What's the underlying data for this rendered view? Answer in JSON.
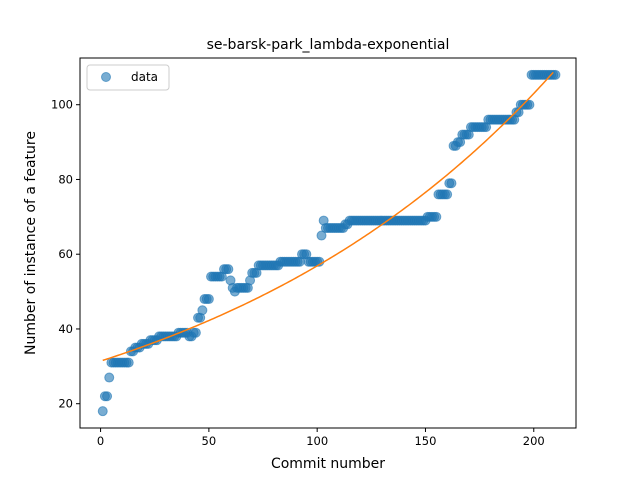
{
  "chart_data": {
    "type": "scatter",
    "title": "se-barsk-park_lambda-exponential",
    "xlabel": "Commit number",
    "ylabel": "Number of instance of a feature",
    "xlim": [
      -9.5,
      219.5
    ],
    "ylim": [
      13.5,
      112.5
    ],
    "x_ticks": [
      0,
      50,
      100,
      150,
      200
    ],
    "y_ticks": [
      20,
      40,
      60,
      80,
      100
    ],
    "legend": {
      "position": "top-left",
      "entries": [
        "data"
      ]
    },
    "grid": false,
    "colors": {
      "data": "#1f77b4",
      "fit": "#ff7f0e"
    },
    "series": [
      {
        "name": "data",
        "kind": "scatter",
        "segments": [
          [
            1,
            1,
            18
          ],
          [
            2,
            2,
            22
          ],
          [
            3,
            3,
            22
          ],
          [
            4,
            4,
            27
          ],
          [
            5,
            13,
            31
          ],
          [
            14,
            15,
            34
          ],
          [
            16,
            18,
            35
          ],
          [
            19,
            22,
            36
          ],
          [
            23,
            26,
            37
          ],
          [
            27,
            28,
            38
          ],
          [
            29,
            35,
            38
          ],
          [
            36,
            40,
            39
          ],
          [
            41,
            42,
            38
          ],
          [
            43,
            44,
            39
          ],
          [
            45,
            46,
            43
          ],
          [
            47,
            47,
            45
          ],
          [
            48,
            50,
            48
          ],
          [
            51,
            56,
            54
          ],
          [
            57,
            59,
            56
          ],
          [
            60,
            60,
            53
          ],
          [
            61,
            61,
            51
          ],
          [
            62,
            62,
            50
          ],
          [
            63,
            68,
            51
          ],
          [
            69,
            69,
            53
          ],
          [
            70,
            72,
            55
          ],
          [
            73,
            78,
            57
          ],
          [
            79,
            82,
            57
          ],
          [
            83,
            92,
            58
          ],
          [
            93,
            95,
            60
          ],
          [
            96,
            101,
            58
          ],
          [
            102,
            102,
            65
          ],
          [
            103,
            103,
            69
          ],
          [
            104,
            112,
            67
          ],
          [
            113,
            114,
            68
          ],
          [
            115,
            150,
            69
          ],
          [
            151,
            155,
            70
          ],
          [
            156,
            160,
            76
          ],
          [
            161,
            162,
            79
          ],
          [
            163,
            164,
            89
          ],
          [
            165,
            166,
            90
          ],
          [
            167,
            170,
            92
          ],
          [
            171,
            178,
            94
          ],
          [
            179,
            185,
            96
          ],
          [
            186,
            191,
            96
          ],
          [
            192,
            193,
            98
          ],
          [
            194,
            198,
            100
          ],
          [
            199,
            210,
            108
          ]
        ]
      },
      {
        "name": "fit",
        "kind": "line",
        "model": "exponential",
        "x_range": [
          1,
          209
        ],
        "params": {
          "a": 31.4,
          "b": 0.00594
        }
      }
    ]
  }
}
